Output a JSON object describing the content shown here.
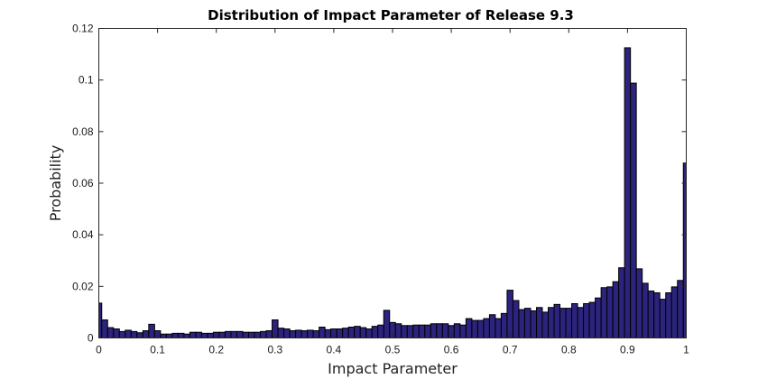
{
  "chart_data": {
    "type": "bar",
    "title": "Distribution of Impact Parameter of Release 9.3",
    "xlabel": "Impact Parameter",
    "ylabel": "Probability",
    "xlim": [
      0,
      1
    ],
    "ylim": [
      0,
      0.12
    ],
    "xticks": [
      "0",
      "0.1",
      "0.2",
      "0.3",
      "0.4",
      "0.5",
      "0.6",
      "0.7",
      "0.8",
      "0.9",
      "1"
    ],
    "xtick_values": [
      0,
      0.1,
      0.2,
      0.3,
      0.4,
      0.5,
      0.6,
      0.7,
      0.8,
      0.9,
      1.0
    ],
    "yticks": [
      "0",
      "0.02",
      "0.04",
      "0.06",
      "0.08",
      "0.1",
      "0.12"
    ],
    "ytick_values": [
      0,
      0.02,
      0.04,
      0.06,
      0.08,
      0.1,
      0.12
    ],
    "grid": false,
    "bar_color": "#2b237c",
    "bin_width": 0.01,
    "x": [
      0.0,
      0.01,
      0.02,
      0.03,
      0.04,
      0.05,
      0.06,
      0.07,
      0.08,
      0.09,
      0.1,
      0.11,
      0.12,
      0.13,
      0.14,
      0.15,
      0.16,
      0.17,
      0.18,
      0.19,
      0.2,
      0.21,
      0.22,
      0.23,
      0.24,
      0.25,
      0.26,
      0.27,
      0.28,
      0.29,
      0.3,
      0.31,
      0.32,
      0.33,
      0.34,
      0.35,
      0.36,
      0.37,
      0.38,
      0.39,
      0.4,
      0.41,
      0.42,
      0.43,
      0.44,
      0.45,
      0.46,
      0.47,
      0.48,
      0.49,
      0.5,
      0.51,
      0.52,
      0.53,
      0.54,
      0.55,
      0.56,
      0.57,
      0.58,
      0.59,
      0.6,
      0.61,
      0.62,
      0.63,
      0.64,
      0.65,
      0.66,
      0.67,
      0.68,
      0.69,
      0.7,
      0.71,
      0.72,
      0.73,
      0.74,
      0.75,
      0.76,
      0.77,
      0.78,
      0.79,
      0.8,
      0.81,
      0.82,
      0.83,
      0.84,
      0.85,
      0.86,
      0.87,
      0.88,
      0.89,
      0.9,
      0.91,
      0.92,
      0.93,
      0.94,
      0.95,
      0.96,
      0.97,
      0.98,
      0.99,
      1.0
    ],
    "values": [
      0.0135,
      0.007,
      0.004,
      0.0035,
      0.0025,
      0.003,
      0.0025,
      0.002,
      0.0028,
      0.0053,
      0.0028,
      0.0015,
      0.0015,
      0.0018,
      0.0018,
      0.0015,
      0.0022,
      0.0022,
      0.0018,
      0.0018,
      0.0022,
      0.0022,
      0.0025,
      0.0025,
      0.0025,
      0.0022,
      0.0022,
      0.0022,
      0.0025,
      0.0028,
      0.007,
      0.0038,
      0.0035,
      0.0028,
      0.003,
      0.0028,
      0.003,
      0.0028,
      0.0042,
      0.0032,
      0.0035,
      0.0035,
      0.0038,
      0.0042,
      0.0045,
      0.004,
      0.0035,
      0.0045,
      0.005,
      0.0107,
      0.006,
      0.0055,
      0.0048,
      0.0048,
      0.005,
      0.005,
      0.005,
      0.0055,
      0.0055,
      0.0055,
      0.0048,
      0.0055,
      0.005,
      0.0075,
      0.0068,
      0.0068,
      0.0075,
      0.009,
      0.0075,
      0.0095,
      0.0185,
      0.0145,
      0.011,
      0.0115,
      0.0105,
      0.0118,
      0.01,
      0.0118,
      0.013,
      0.0115,
      0.0115,
      0.0133,
      0.0118,
      0.0133,
      0.0138,
      0.0155,
      0.0195,
      0.0198,
      0.0218,
      0.0272,
      0.1125,
      0.0988,
      0.0268,
      0.0212,
      0.0182,
      0.0175,
      0.015,
      0.0175,
      0.0198,
      0.0223,
      0.0678
    ]
  }
}
